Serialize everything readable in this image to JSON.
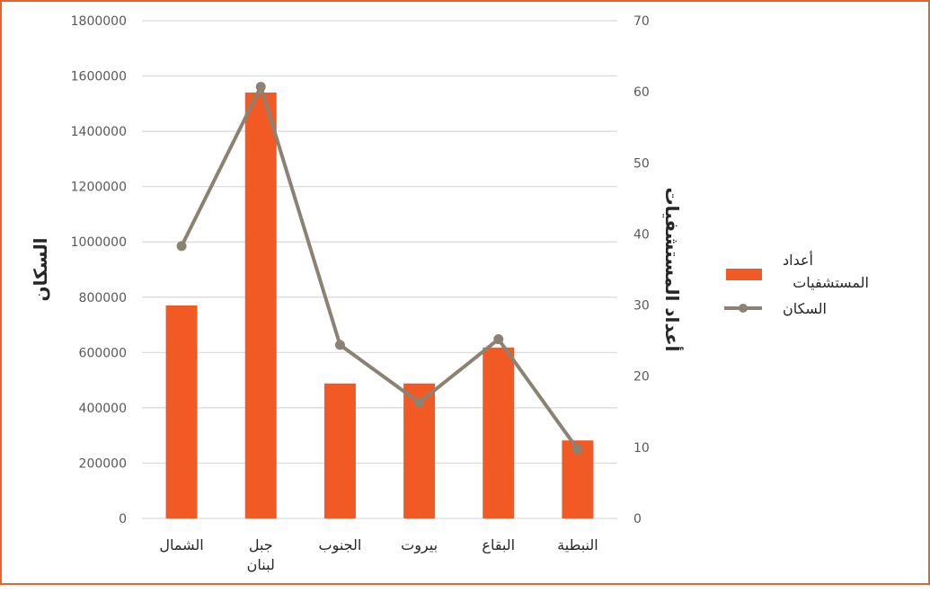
{
  "chart_data": {
    "type": "bar",
    "categories": [
      [
        "الشمال"
      ],
      [
        "جبل",
        "لبنان"
      ],
      [
        "الجنوب"
      ],
      [
        "بيروت"
      ],
      [
        "البقاع"
      ],
      [
        "النبطية"
      ]
    ],
    "series": [
      {
        "name": "أعداد المستشفيات",
        "legend_lines": [
          "أعداد",
          "المستشفيات"
        ],
        "type": "bar",
        "axis": "left",
        "color": "#f15a24",
        "values": [
          770000,
          1540000,
          488000,
          488000,
          618000,
          282000
        ]
      },
      {
        "name": "السكان",
        "type": "line",
        "axis": "right",
        "color": "#8c8273",
        "values": [
          38.3,
          60.7,
          24.4,
          16.3,
          25.2,
          9.7
        ]
      }
    ],
    "left_axis": {
      "title": "السكان",
      "range": [
        0,
        1800000
      ],
      "ticks": [
        "0",
        "200000",
        "400000",
        "600000",
        "800000",
        "1000000",
        "1200000",
        "1400000",
        "1600000",
        "1800000"
      ]
    },
    "right_axis": {
      "title": "أعداد المستشفيات",
      "range": [
        0,
        70
      ],
      "ticks": [
        "0",
        "10",
        "20",
        "30",
        "40",
        "50",
        "60",
        "70"
      ]
    },
    "grid": true,
    "legend_position": "right",
    "colors": {
      "frame": "#e8622c",
      "grid": "#d9d9d9",
      "bar": "#f15a24",
      "line": "#8c8273"
    }
  }
}
